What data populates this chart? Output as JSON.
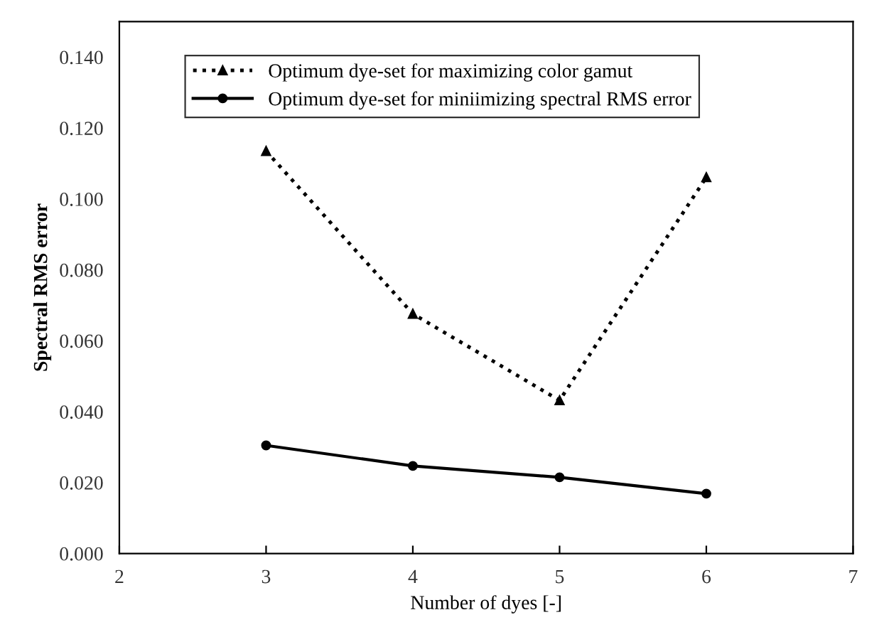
{
  "chart_data": {
    "type": "line",
    "xlabel": "Number of dyes [-]",
    "ylabel": "Spectral RMS error",
    "x": [
      3,
      4,
      5,
      6
    ],
    "series": [
      {
        "name": "Optimum dye-set for maximizing color gamut",
        "color": "#000000",
        "values": [
          0.1135,
          0.0676,
          0.0432,
          0.1061
        ],
        "marker": "triangle",
        "line_style": "dotted"
      },
      {
        "name": "Optimum dye-set for miniimizing spectral RMS error",
        "color": "#000000",
        "values": [
          0.0305,
          0.0247,
          0.0215,
          0.0169
        ],
        "marker": "circle",
        "line_style": "solid"
      }
    ],
    "xlim": [
      2,
      7
    ],
    "xticks": [
      2,
      3,
      4,
      5,
      6,
      7
    ],
    "ylim": [
      0,
      0.15
    ],
    "yticks": [
      {
        "value": 0,
        "label": "0.000"
      },
      {
        "value": 0.02,
        "label": "0.020"
      },
      {
        "value": 0.04,
        "label": "0.040"
      },
      {
        "value": 0.06,
        "label": "0.060"
      },
      {
        "value": 0.08,
        "label": "0.080"
      },
      {
        "value": 0.1,
        "label": "0.100"
      },
      {
        "value": 0.12,
        "label": "0.120"
      },
      {
        "value": 0.14,
        "label": "0.140"
      }
    ],
    "grid": false,
    "legend": "top"
  }
}
